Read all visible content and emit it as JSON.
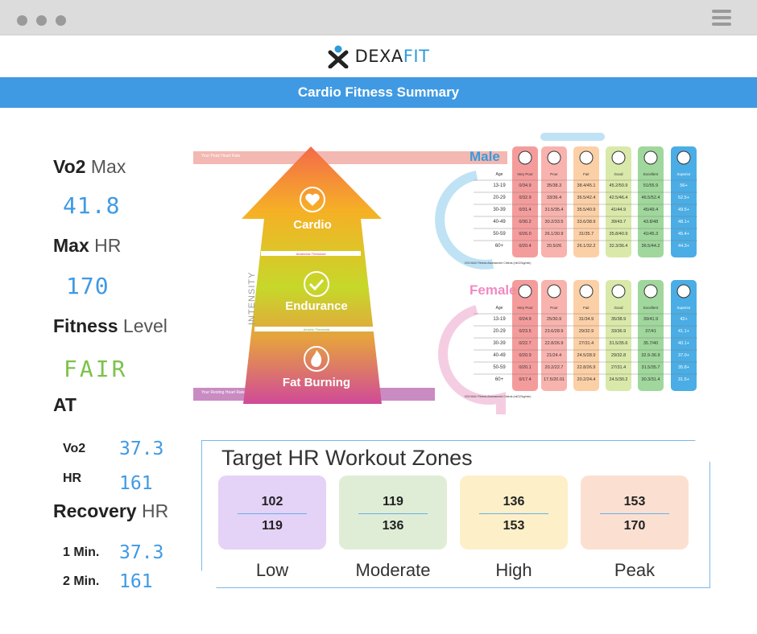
{
  "window": {
    "menu_icon": "hamburger-icon"
  },
  "header": {
    "brand_first": "DEXA",
    "brand_second": "FIT",
    "logo_icon": "dexafit-logo",
    "title": "Cardio Fitness Summary",
    "colors": {
      "title_bar": "#3f9ae3",
      "brand_fit": "#2e9ad8"
    }
  },
  "stats": {
    "vo2max": {
      "label_bold": "Vo2",
      "label_rest": " Max",
      "value": "41.8"
    },
    "maxhr": {
      "label_bold": "Max",
      "label_rest": " HR",
      "value": "170"
    },
    "fitness": {
      "label_bold": "Fitness",
      "label_rest": " Level",
      "value": "FAIR"
    },
    "at": {
      "label": "AT",
      "vo2_label": "Vo2",
      "vo2_value": "37.3",
      "hr_label": "HR",
      "hr_value": "161"
    },
    "recovery": {
      "label_bold": "Recovery",
      "label_rest": " HR",
      "min1_label": "1 Min.",
      "min1_value": "37.3",
      "min2_label": "2 Min.",
      "min2_value": "161"
    }
  },
  "infographic": {
    "peak_label": "Your Peak Heart Rate",
    "resting_label": "Your Resting Heart Rate",
    "intensity_label": "INTENSITY",
    "zones": [
      "Cardio",
      "Endurance",
      "Fat Burning"
    ],
    "anaerobic_label": "Anaerobic Threshold",
    "aerobic_label": "Aerobic Threshold",
    "criteria_label": "VO2 MAX Fitness Assessment Criteria (mlO2/kg/min)",
    "header_age": "Age",
    "levels": [
      "Very Poor",
      "Poor",
      "Fair",
      "Good",
      "Excellent",
      "Superior"
    ],
    "level_colors": [
      "#f28b8b",
      "#f7a6a0",
      "#fbc898",
      "#d2e59a",
      "#8fd08b",
      "#2b9fe0"
    ],
    "male": {
      "title": "Male",
      "rows": [
        [
          "13-19",
          "0/34.9",
          "35/38.3",
          "38.4/45.1",
          "45.2/50.9",
          "51/55.9",
          "56+"
        ],
        [
          "20-29",
          "0/32.9",
          "33/36.4",
          "36.5/42.4",
          "42.5/46.4",
          "46.5/52.4",
          "52.5+"
        ],
        [
          "30-39",
          "0/31.4",
          "31.5/35.4",
          "35.5/40.9",
          "41/44.9",
          "45/49.4",
          "49.5+"
        ],
        [
          "40-49",
          "0/30.2",
          "30.2/33.5",
          "33.6/38.9",
          "39/43.7",
          "43.8/48",
          "48.1+"
        ],
        [
          "50-59",
          "0/26.0",
          "26.1/30.9",
          "31/35.7",
          "35.8/40.9",
          "41/45.3",
          "45.4+"
        ],
        [
          "60+",
          "0/20.4",
          "20.5/26",
          "26.1/32.2",
          "32.3/36.4",
          "36.5/44.2",
          "44.3+"
        ]
      ]
    },
    "female": {
      "title": "Female",
      "rows": [
        [
          "13-19",
          "0/24.9",
          "25/30.9",
          "31/34.9",
          "35/38.9",
          "39/41.9",
          "42+"
        ],
        [
          "20-29",
          "0/23.5",
          "23.6/28.9",
          "29/32.9",
          "33/36.9",
          "37/41",
          "41.1+"
        ],
        [
          "30-39",
          "0/22.7",
          "22.8/26.9",
          "27/31.4",
          "31.5/35.6",
          "35.7/40",
          "40.1+"
        ],
        [
          "40-49",
          "0/20.9",
          "21/24.4",
          "24.5/28.9",
          "29/32.8",
          "32.9-36.9",
          "37.0+"
        ],
        [
          "50-59",
          "0/20.1",
          "20.2/22.7",
          "22.8/26.9",
          "27/31.4",
          "31.5/35.7",
          "35.8+"
        ],
        [
          "60+",
          "0/17.4",
          "17.5/20.01",
          "20.2/24.4",
          "24.5/30.2",
          "30.3/31.4",
          "31.5+"
        ]
      ]
    }
  },
  "zones_panel": {
    "title": "Target HR Workout Zones",
    "zones": [
      {
        "name": "Low",
        "top": "102",
        "bottom": "119",
        "color": "#e5d2f7"
      },
      {
        "name": "Moderate",
        "top": "119",
        "bottom": "136",
        "color": "#e0edd6"
      },
      {
        "name": "High",
        "top": "136",
        "bottom": "153",
        "color": "#fdefc8"
      },
      {
        "name": "Peak",
        "top": "153",
        "bottom": "170",
        "color": "#fbe0d2"
      }
    ]
  }
}
